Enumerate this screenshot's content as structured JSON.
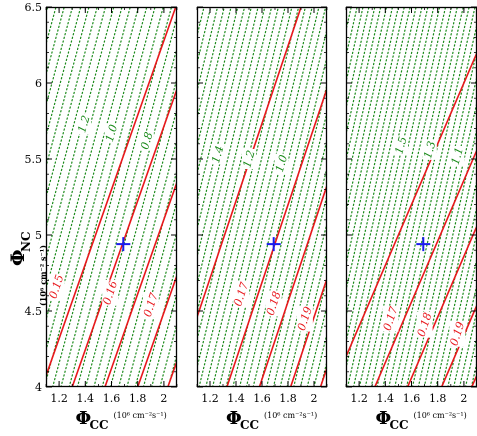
{
  "chart_data": {
    "type": "contour",
    "colors": {
      "red_contour": "#e8171c",
      "green_contour": "#1a8a1a",
      "marker": "#1a1aee",
      "frame": "#000000"
    },
    "shared": {
      "x_range": [
        1.1,
        2.1
      ],
      "y_range": [
        4.0,
        6.5
      ],
      "x_ticks": [
        1.2,
        1.4,
        1.6,
        1.8,
        2.0
      ],
      "x_tick_labels": [
        "1.2",
        "1.4",
        "1.6",
        "1.8",
        "2"
      ],
      "y_ticks": [
        4.0,
        4.5,
        5.0,
        5.5,
        6.0,
        6.5
      ],
      "y_tick_labels": [
        "4",
        "4.5",
        "5",
        "5.5",
        "6",
        "6.5"
      ],
      "ylabel_symbol": "Φ",
      "ylabel_sub": "NC",
      "ylabel_unit": "(10⁶ cm⁻² s⁻¹)",
      "xlabel_symbol": "Φ",
      "xlabel_sub": "CC",
      "xlabel_unit": "(10⁶ cm⁻²s⁻¹)"
    },
    "panels": [
      {
        "marker": {
          "x": 1.69,
          "y": 4.94
        },
        "red_lines": [
          {
            "value": "0.15",
            "x_at_ymin": 1.07,
            "slope": 2.45
          },
          {
            "value": "0.16",
            "x_at_ymin": 1.3,
            "slope": 2.45
          },
          {
            "value": "0.17",
            "x_at_ymin": 1.55,
            "slope": 2.45
          },
          {
            "value": "",
            "x_at_ymin": 1.8,
            "slope": 2.45
          },
          {
            "value": "",
            "x_at_ymin": 2.03,
            "slope": 2.45
          }
        ],
        "red_labels": [
          {
            "text": "0.15",
            "x": 1.18,
            "y": 4.66
          },
          {
            "text": "0.16",
            "x": 1.59,
            "y": 4.62
          },
          {
            "text": "0.17",
            "x": 1.9,
            "y": 4.54
          }
        ],
        "green_spacing": 0.063,
        "green_slope": 3.2,
        "green_labels": [
          {
            "text": "1.2",
            "x": 1.39,
            "y": 5.73
          },
          {
            "text": "1.0",
            "x": 1.6,
            "y": 5.67
          },
          {
            "text": "0.8",
            "x": 1.87,
            "y": 5.62
          }
        ]
      },
      {
        "marker": {
          "x": 1.69,
          "y": 4.94
        },
        "red_lines": [
          {
            "value": "",
            "x_at_ymin": 0.92,
            "slope": 2.55
          },
          {
            "value": "0.17",
            "x_at_ymin": 1.33,
            "slope": 2.55
          },
          {
            "value": "0.18",
            "x_at_ymin": 1.58,
            "slope": 2.55
          },
          {
            "value": "0.19",
            "x_at_ymin": 1.82,
            "slope": 2.55
          },
          {
            "value": "",
            "x_at_ymin": 2.05,
            "slope": 2.55
          }
        ],
        "red_labels": [
          {
            "text": "0.17",
            "x": 1.44,
            "y": 4.61
          },
          {
            "text": "0.18",
            "x": 1.69,
            "y": 4.55
          },
          {
            "text": "0.19",
            "x": 1.93,
            "y": 4.45
          }
        ],
        "green_spacing": 0.052,
        "green_slope": 3.5,
        "green_labels": [
          {
            "text": "1.4",
            "x": 1.26,
            "y": 5.53
          },
          {
            "text": "1.2",
            "x": 1.5,
            "y": 5.5
          },
          {
            "text": "1.0",
            "x": 1.75,
            "y": 5.47
          }
        ]
      },
      {
        "marker": {
          "x": 1.69,
          "y": 4.94
        },
        "red_lines": [
          {
            "value": "",
            "x_at_ymin": 1.0,
            "slope": 2.0
          },
          {
            "value": "0.17",
            "x_at_ymin": 1.32,
            "slope": 2.0
          },
          {
            "value": "0.18",
            "x_at_ymin": 1.57,
            "slope": 2.0
          },
          {
            "value": "0.19",
            "x_at_ymin": 1.83,
            "slope": 2.0
          },
          {
            "value": "",
            "x_at_ymin": 2.06,
            "slope": 2.0
          }
        ],
        "red_labels": [
          {
            "text": "0.17",
            "x": 1.44,
            "y": 4.45
          },
          {
            "text": "0.18",
            "x": 1.7,
            "y": 4.41
          },
          {
            "text": "0.19",
            "x": 1.95,
            "y": 4.35
          }
        ],
        "green_spacing": 0.045,
        "green_slope": 3.8,
        "green_labels": [
          {
            "text": "1.5",
            "x": 1.52,
            "y": 5.59
          },
          {
            "text": "1.3",
            "x": 1.74,
            "y": 5.56
          },
          {
            "text": "1.1",
            "x": 1.95,
            "y": 5.52
          }
        ]
      }
    ]
  }
}
